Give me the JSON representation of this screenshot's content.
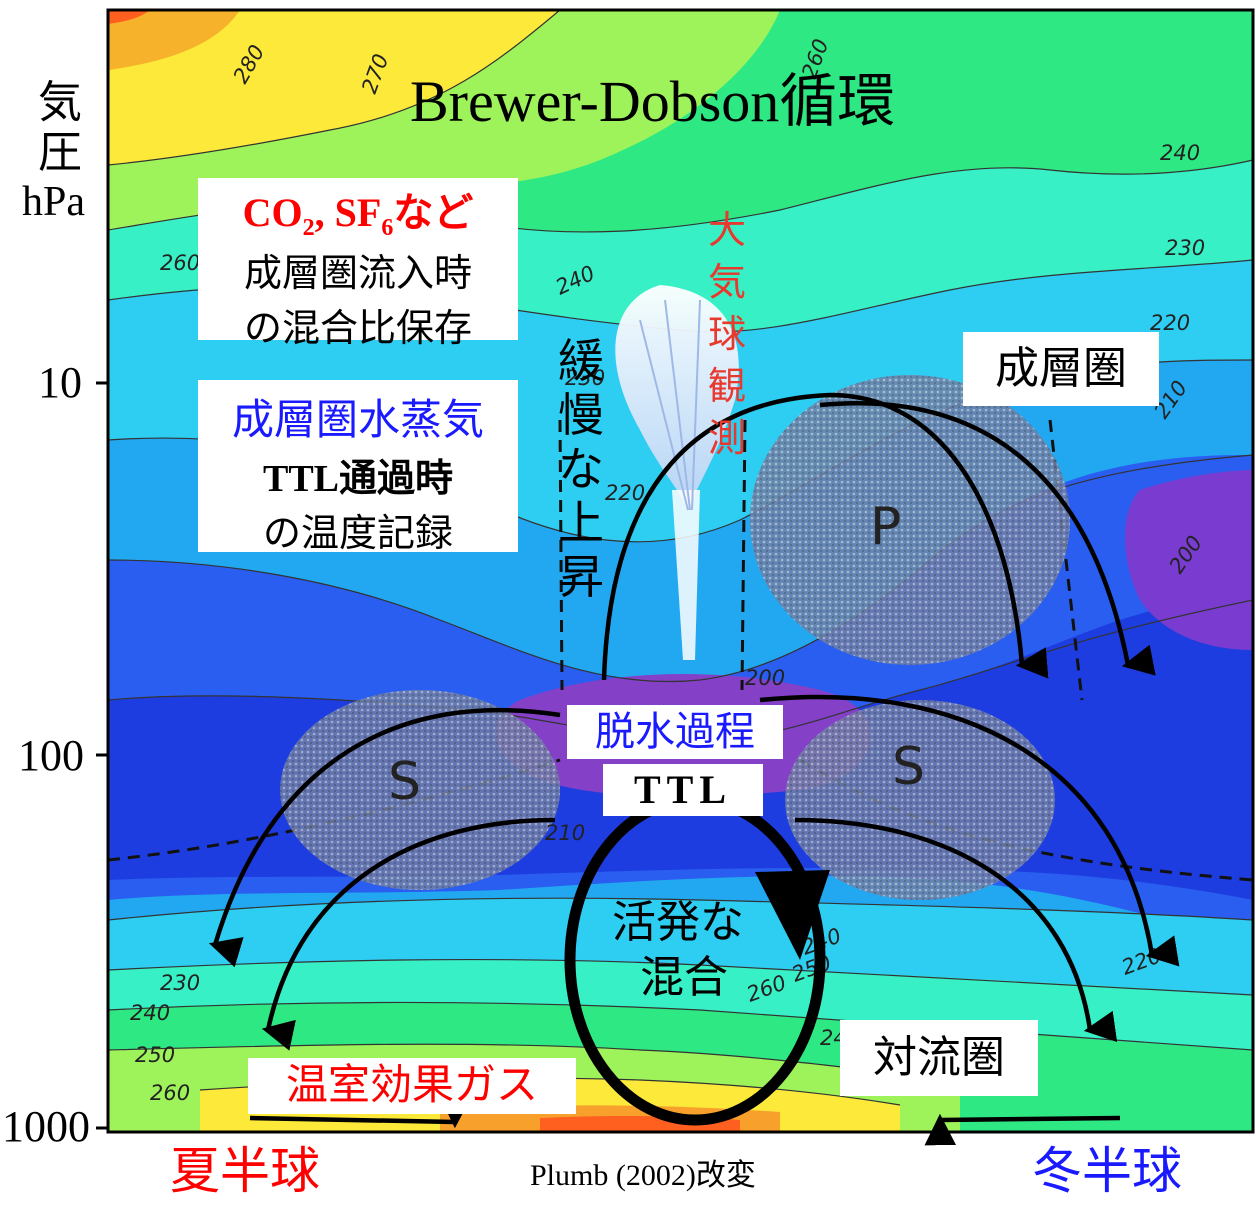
{
  "title": "Brewer-Dobson循環",
  "axis": {
    "y_label_line1": "気",
    "y_label_line2": "圧",
    "y_label_line3": "hPa",
    "y_ticks": [
      "10",
      "100",
      "1000"
    ]
  },
  "boxes": {
    "co2_head": "CO",
    "co2_sub1": "2",
    "co2_mid": ", SF",
    "co2_sub2": "6",
    "co2_tail": "など",
    "co2_line2": "成層圏流入時",
    "co2_line3": "の混合比保存",
    "water_line1": "成層圏水蒸気",
    "water_line2": "TTL通過時",
    "water_line3": "の温度記録",
    "stratosphere": "成層圏",
    "dehydration": "脱水過程",
    "ttl": "TTL",
    "troposphere": "対流圏",
    "greenhouse": "温室効果ガス"
  },
  "labels": {
    "slow_rise": [
      "緩",
      "慢",
      "な",
      "上",
      "昇"
    ],
    "balloon": [
      "大",
      "気",
      "球",
      "観",
      "測"
    ],
    "active_mixing_1": "活発な",
    "active_mixing_2": "混合",
    "p_region": "P",
    "s_left": "S",
    "s_right": "S"
  },
  "bottom": {
    "summer": "夏半球",
    "source": "Plumb (2002)改変",
    "winter": "冬半球"
  },
  "contour_labels": [
    "280",
    "270",
    "260",
    "240",
    "230",
    "220",
    "210",
    "200",
    "260",
    "240",
    "230",
    "220",
    "210",
    "200",
    "230",
    "240",
    "250",
    "260",
    "240",
    "250",
    "260",
    "220",
    "240"
  ],
  "colors": {
    "red": "#ff0000",
    "blue": "#1a1aff",
    "balloon_red": "#e8392e"
  }
}
